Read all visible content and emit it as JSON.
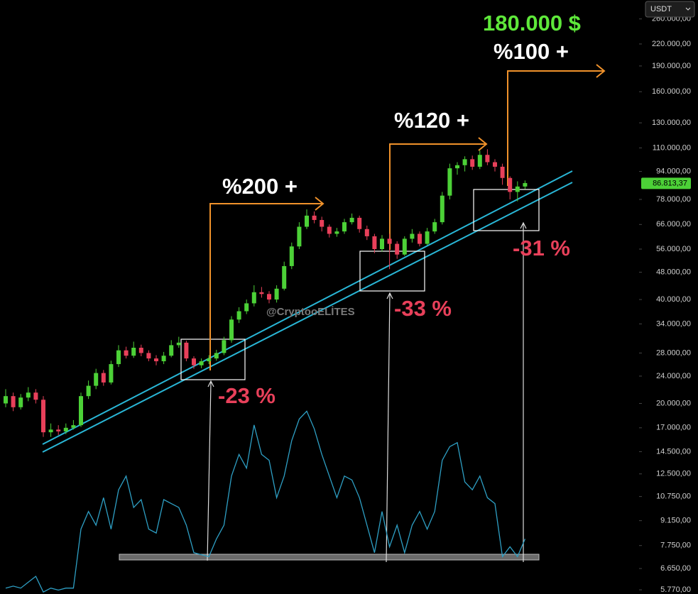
{
  "chart_data": [
    {
      "type": "candlestick",
      "log_scale": true,
      "open": [
        20000,
        21000,
        19500,
        20800,
        21500,
        20500,
        16500,
        16800,
        16600,
        17000,
        17300,
        21000,
        22500,
        24500,
        23000,
        26000,
        28500,
        27500,
        29000,
        28000,
        27000,
        26500,
        27500,
        29500,
        30000,
        27000,
        25800,
        26500,
        27000,
        28000,
        30500,
        35000,
        37000,
        39000,
        42000,
        41500,
        40000,
        43000,
        50000,
        57000,
        65000,
        70000,
        68000,
        65000,
        62000,
        63000,
        67000,
        69000,
        64000,
        61000,
        56000,
        60000,
        58000,
        54000,
        60000,
        62000,
        58000,
        63000,
        67000,
        80000,
        96000,
        98000,
        102000,
        97000,
        105000,
        100000,
        97000,
        90000,
        82000,
        85000
      ],
      "high": [
        22000,
        21500,
        21300,
        22300,
        22000,
        21000,
        17500,
        17300,
        17500,
        17900,
        21500,
        23300,
        25200,
        25000,
        26600,
        29500,
        29200,
        30200,
        29600,
        28500,
        27600,
        28200,
        30500,
        31200,
        30400,
        27400,
        27000,
        27600,
        28600,
        31200,
        35800,
        38000,
        40000,
        44000,
        43500,
        42300,
        44000,
        51500,
        58500,
        67000,
        73000,
        72000,
        69500,
        66000,
        64500,
        68500,
        71000,
        70000,
        65500,
        62000,
        61500,
        62000,
        59000,
        61000,
        64000,
        63000,
        64500,
        68500,
        82000,
        99000,
        100000,
        104000,
        104500,
        108000,
        109000,
        102000,
        99000,
        91000,
        88000,
        88500
      ],
      "low": [
        19500,
        19000,
        19200,
        20300,
        20000,
        16000,
        16000,
        16200,
        16300,
        16800,
        17100,
        20600,
        22000,
        22500,
        22700,
        25500,
        27000,
        27100,
        27400,
        26500,
        25800,
        26000,
        27200,
        29000,
        26500,
        25200,
        25300,
        26000,
        26600,
        27600,
        30000,
        34200,
        36300,
        38200,
        40500,
        39000,
        39200,
        42500,
        49000,
        56000,
        64000,
        66500,
        63000,
        60500,
        60800,
        62000,
        66000,
        62500,
        59500,
        54500,
        55000,
        49000,
        52500,
        53500,
        58500,
        57000,
        57500,
        62000,
        66000,
        78000,
        92000,
        94000,
        95000,
        95500,
        98000,
        94000,
        86000,
        78000,
        77000,
        83500
      ],
      "close": [
        21000,
        19500,
        20800,
        21500,
        20500,
        16500,
        16800,
        16600,
        17000,
        17300,
        21000,
        22500,
        24500,
        23000,
        26000,
        28500,
        27500,
        29000,
        28000,
        27000,
        26500,
        27500,
        29500,
        30000,
        27000,
        25800,
        26500,
        27000,
        28000,
        30500,
        35000,
        37000,
        39000,
        42000,
        41500,
        40000,
        43000,
        50000,
        57000,
        65000,
        70000,
        68000,
        65000,
        62000,
        63000,
        67000,
        69000,
        64000,
        61000,
        56000,
        60000,
        58000,
        54000,
        60000,
        62000,
        58000,
        63000,
        67000,
        80000,
        96000,
        98000,
        102000,
        97000,
        105000,
        100000,
        97000,
        90000,
        82000,
        85000,
        87000
      ],
      "up_color": "#4cd137",
      "down_color": "#e8405a",
      "ylim": [
        5610,
        295000
      ],
      "yticks": [
        {
          "value": 5770,
          "label": "5.770,00"
        },
        {
          "value": 6650,
          "label": "6.650,00"
        },
        {
          "value": 7750,
          "label": "7.750,00"
        },
        {
          "value": 9150,
          "label": "9.150,00"
        },
        {
          "value": 10750,
          "label": "10.750,00"
        },
        {
          "value": 12500,
          "label": "12.500,00"
        },
        {
          "value": 14500,
          "label": "14.500,00"
        },
        {
          "value": 17000,
          "label": "17.000,00"
        },
        {
          "value": 20000,
          "label": "20.000,00"
        },
        {
          "value": 24000,
          "label": "24.000,00"
        },
        {
          "value": 28000,
          "label": "28.000,00"
        },
        {
          "value": 34000,
          "label": "34.000,00"
        },
        {
          "value": 40000,
          "label": "40.000,00"
        },
        {
          "value": 48000,
          "label": "48.000,00"
        },
        {
          "value": 56000,
          "label": "56.000,00"
        },
        {
          "value": 66000,
          "label": "66.000,00"
        },
        {
          "value": 78000,
          "label": "78.000,00"
        },
        {
          "value": 94000,
          "label": "94.000,00"
        },
        {
          "value": 110000,
          "label": "110.000,00"
        },
        {
          "value": 130000,
          "label": "130.000,00"
        },
        {
          "value": 160000,
          "label": "160.000,00"
        },
        {
          "value": 190000,
          "label": "190.000,00"
        },
        {
          "value": 220000,
          "label": "220.000,00"
        },
        {
          "value": 260000,
          "label": "260.000,00"
        }
      ],
      "last_price": {
        "value": 86813.37,
        "label": "86.813,37"
      },
      "annotations": {
        "target": "180.000 $",
        "gain_3": "%100 +",
        "gain_2": "%120 +",
        "gain_1": "%200 +",
        "drop_1": "-23 %",
        "drop_2": "-33 %",
        "drop_3": "-31 %",
        "watermark": "@CryptooELİTES"
      }
    },
    {
      "type": "line",
      "color": "#2e9fc4",
      "ylim": [
        0,
        100
      ],
      "values": [
        3,
        4,
        3,
        6,
        9,
        1,
        3,
        2,
        3,
        3,
        33,
        42,
        35,
        49,
        33,
        53,
        60,
        44,
        48,
        33,
        31,
        48,
        46,
        44,
        35,
        21,
        20,
        19,
        28,
        35,
        60,
        71,
        64,
        86,
        71,
        68,
        49,
        60,
        78,
        89,
        93,
        84,
        71,
        60,
        49,
        60,
        58,
        49,
        35,
        21,
        42,
        24,
        35,
        21,
        35,
        42,
        33,
        42,
        68,
        75,
        77,
        57,
        53,
        60,
        49,
        46,
        19,
        24,
        19,
        28
      ]
    }
  ],
  "ui": {
    "currency_select": "USDT"
  }
}
